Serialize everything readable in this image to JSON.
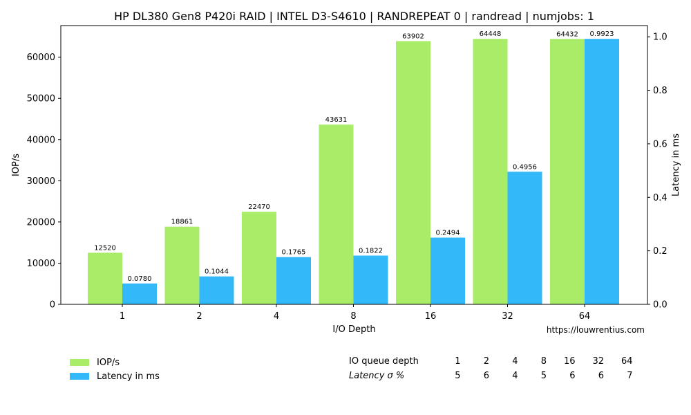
{
  "chart_data": {
    "type": "bar",
    "title": "HP DL380 Gen8 P420i RAID | INTEL D3-S4610 | RANDREPEAT 0  | randread | numjobs: 1",
    "xlabel": "I/O Depth",
    "ylabel": "IOP/s",
    "y2label": "Latency in ms",
    "categories": [
      "1",
      "2",
      "4",
      "8",
      "16",
      "32",
      "64"
    ],
    "ylim": [
      0,
      67670
    ],
    "y2lim": [
      0,
      1.0419
    ],
    "yticks": [
      0,
      10000,
      20000,
      30000,
      40000,
      50000,
      60000
    ],
    "y2ticks": [
      "0.0",
      "0.2",
      "0.4",
      "0.6",
      "0.8",
      "1.0"
    ],
    "series": [
      {
        "name": "IOP/s",
        "axis": "left",
        "color": "#a8ec67",
        "values": [
          12520,
          18861,
          22470,
          43631,
          63902,
          64448,
          64432
        ],
        "labels": [
          "12520",
          "18861",
          "22470",
          "43631",
          "63902",
          "64448",
          "64432"
        ]
      },
      {
        "name": "Latency in ms",
        "axis": "right",
        "color": "#33b8f9",
        "values": [
          0.078,
          0.1044,
          0.1765,
          0.1822,
          0.2494,
          0.4956,
          0.9923
        ],
        "labels": [
          "0.0780",
          "0.1044",
          "0.1765",
          "0.1822",
          "0.2494",
          "0.4956",
          "0.9923"
        ]
      }
    ],
    "grid": false,
    "legend_position": "bottom-left"
  },
  "credit": "https://louwrentius.com",
  "stats_table": {
    "row1_label": "IO queue depth",
    "row1_values": [
      "1",
      "2",
      "4",
      "8",
      "16",
      "32",
      "64"
    ],
    "row2_label": "Latency σ %",
    "row2_values": [
      "5",
      "6",
      "4",
      "5",
      "6",
      "6",
      "7"
    ]
  }
}
